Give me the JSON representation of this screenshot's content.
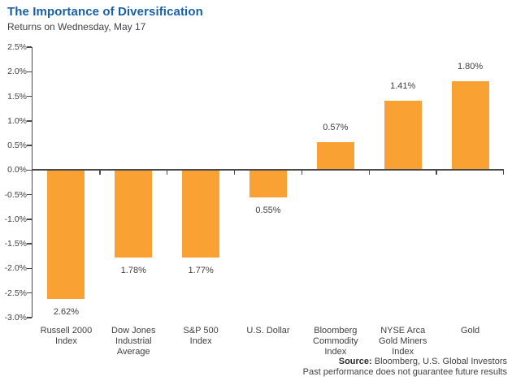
{
  "header": {
    "title": "The Importance of Diversification",
    "subtitle": "Returns on Wednesday, May 17"
  },
  "chart_data": {
    "type": "bar",
    "title": "The Importance of Diversification",
    "subtitle": "Returns on Wednesday, May 17",
    "categories": [
      [
        "Russell 2000",
        "Index"
      ],
      [
        "Dow Jones",
        "Industrial",
        "Average"
      ],
      [
        "S&P 500",
        "Index"
      ],
      [
        "U.S. Dollar"
      ],
      [
        "Bloomberg",
        "Commodity",
        "Index"
      ],
      [
        "NYSE Arca",
        "Gold Miners",
        "Index"
      ],
      [
        "Gold"
      ]
    ],
    "values": [
      -2.62,
      -1.78,
      -1.77,
      -0.55,
      0.57,
      1.41,
      1.8
    ],
    "bar_labels": [
      "2.62%",
      "1.78%",
      "1.77%",
      "0.55%",
      "0.57%",
      "1.41%",
      "1.80%"
    ],
    "xlabel": "",
    "ylabel": "",
    "ylim": [
      -3.0,
      2.5
    ],
    "yticks": [
      2.5,
      2.0,
      1.5,
      1.0,
      0.5,
      0.0,
      -0.5,
      -1.0,
      -1.5,
      -2.0,
      -2.5,
      -3.0
    ],
    "ytick_labels": [
      "2.5%",
      "2.0%",
      "1.5%",
      "1.0%",
      "0.5%",
      "0.0%",
      "-0.5%",
      "-1.0%",
      "-1.5%",
      "-2.0%",
      "-2.5%",
      "-3.0%"
    ],
    "grid": false,
    "legend": false,
    "bar_color": "#F9A132",
    "axis_color": "#4a4a4c"
  },
  "footer": {
    "source_label": "Source:",
    "source_text": " Bloomberg, U.S. Global Investors",
    "disclaimer": "Past performance does not guarantee future results"
  },
  "colors": {
    "title_blue": "#1760A8",
    "text_gray": "#414042",
    "bar_orange": "#F9A132",
    "axis_gray": "#4a4a4c",
    "background": "#ffffff"
  }
}
